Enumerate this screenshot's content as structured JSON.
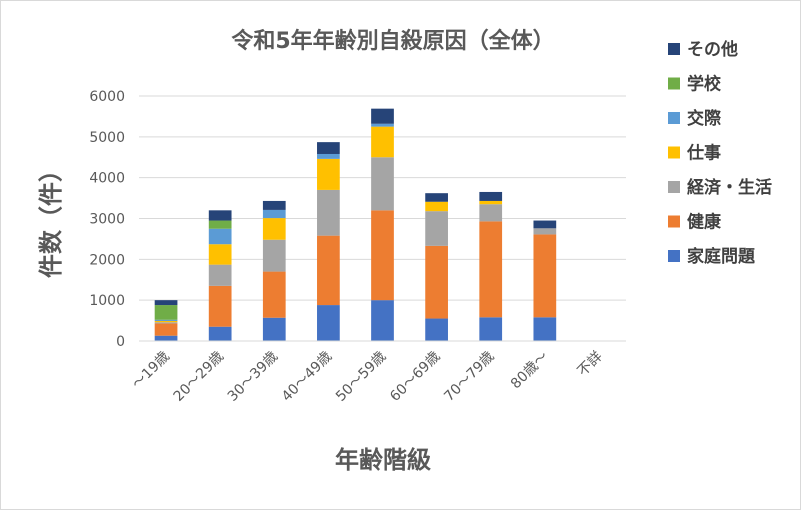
{
  "chart_data": {
    "type": "bar",
    "stacked": true,
    "title": "令和5年年齢別自殺原因（全体）",
    "xlabel": "年齢階級",
    "ylabel": "件数（件）",
    "ylim": [
      0,
      6000
    ],
    "yticks": [
      0,
      1000,
      2000,
      3000,
      4000,
      5000,
      6000
    ],
    "grid": true,
    "legend_position": "right",
    "categories": [
      "～19歳",
      "20～29歳",
      "30～39歳",
      "40～49歳",
      "50～59歳",
      "60～69歳",
      "70～79歳",
      "80歳～",
      "不詳"
    ],
    "series": [
      {
        "name": "家庭問題",
        "color": "#4472C4",
        "values": [
          130,
          350,
          570,
          880,
          1000,
          550,
          580,
          580,
          0
        ]
      },
      {
        "name": "健康",
        "color": "#ED7D31",
        "values": [
          300,
          1000,
          1130,
          1700,
          2200,
          1780,
          2350,
          2030,
          0
        ]
      },
      {
        "name": "経済・生活",
        "color": "#A5A5A5",
        "values": [
          30,
          520,
          780,
          1120,
          1300,
          850,
          420,
          150,
          0
        ]
      },
      {
        "name": "仕事",
        "color": "#FFC000",
        "values": [
          30,
          500,
          530,
          760,
          750,
          230,
          80,
          0,
          0
        ]
      },
      {
        "name": "交際",
        "color": "#5B9BD5",
        "values": [
          30,
          380,
          200,
          120,
          70,
          0,
          0,
          0,
          0
        ]
      },
      {
        "name": "学校",
        "color": "#70AD47",
        "values": [
          360,
          200,
          0,
          0,
          0,
          0,
          0,
          0,
          0
        ]
      },
      {
        "name": "その他",
        "color": "#264478",
        "values": [
          120,
          250,
          220,
          290,
          370,
          210,
          220,
          190,
          0
        ]
      }
    ]
  }
}
